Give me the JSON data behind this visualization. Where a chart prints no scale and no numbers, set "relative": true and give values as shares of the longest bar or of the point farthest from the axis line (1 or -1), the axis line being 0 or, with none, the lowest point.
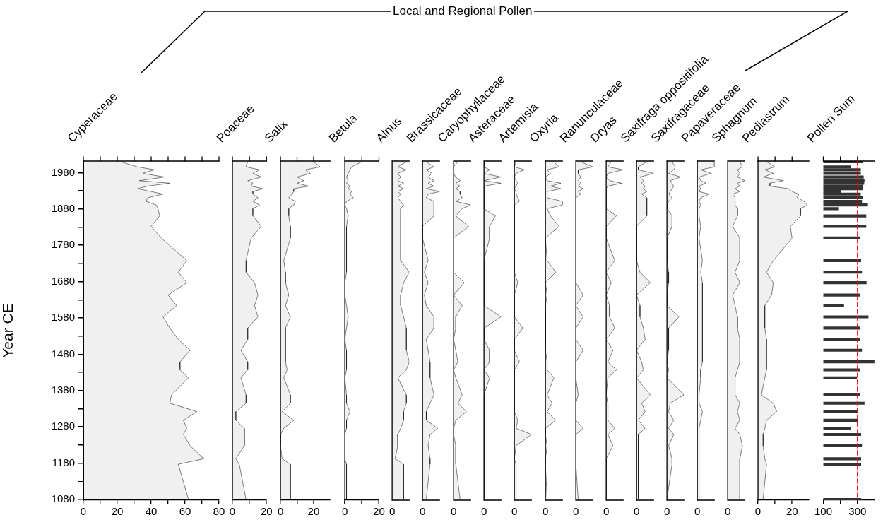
{
  "chart_data": [
    {
      "type": "area",
      "orientation": "horizontal",
      "title": "Cyperaceae",
      "ylabel": "Year CE",
      "annotations": [
        "Local and Regional Pollen"
      ],
      "color": "#000000",
      "xlim": [
        0,
        80
      ],
      "xticks": [
        0,
        {
          "value": 10,
          "label": null
        },
        20,
        {
          "value": 30,
          "label": null
        },
        40,
        {
          "value": 50,
          "label": null
        },
        60,
        {
          "value": 70,
          "label": null
        },
        80
      ],
      "ylim": [
        1078,
        2012
      ],
      "yticks": [
        1080,
        {
          "value": 1130,
          "label": null
        },
        1180,
        {
          "value": 1230,
          "label": null
        },
        1280,
        {
          "value": 1330,
          "label": null
        },
        1380,
        {
          "value": 1430,
          "label": null
        },
        1480,
        {
          "value": 1530,
          "label": null
        },
        1580,
        {
          "value": 1630,
          "label": null
        },
        1680,
        {
          "value": 1730,
          "label": null
        },
        1780,
        {
          "value": 1830,
          "label": null
        },
        1880,
        {
          "value": 1930,
          "label": null
        },
        1980
      ],
      "x": [
        2010,
        1996,
        1988,
        1978,
        1968,
        1958,
        1951,
        1943,
        1936,
        1928,
        1921,
        1911,
        1901,
        1891,
        1881,
        1861,
        1832,
        1800,
        1738,
        1706,
        1677,
        1643,
        1614,
        1583,
        1552,
        1521,
        1491,
        1459,
        1437,
        1415,
        1368,
        1345,
        1322,
        1298,
        1276,
        1259,
        1228,
        1192,
        1177,
        1080
      ],
      "values": [
        22,
        32,
        42,
        35,
        48,
        33,
        51,
        38,
        32,
        40,
        47,
        38,
        37,
        43,
        44,
        45,
        40,
        46,
        61,
        56,
        61,
        50,
        55,
        47,
        51,
        56,
        63,
        57,
        57,
        62,
        52,
        51,
        67,
        59,
        61,
        59,
        63,
        71,
        56,
        62
      ]
    },
    {
      "type": "area",
      "orientation": "horizontal",
      "title": "Poaceae",
      "color": "#000000",
      "xlim": [
        0,
        20
      ],
      "xticks": [
        0,
        {
          "value": 10,
          "label": null
        },
        20
      ],
      "ylim": [
        1078,
        2012
      ],
      "tick_labels": "x",
      "x": [
        2010,
        1996,
        1988,
        1978,
        1968,
        1958,
        1951,
        1943,
        1936,
        1928,
        1921,
        1911,
        1901,
        1891,
        1881,
        1861,
        1832,
        1800,
        1738,
        1706,
        1677,
        1643,
        1614,
        1583,
        1552,
        1521,
        1491,
        1459,
        1437,
        1415,
        1368,
        1345,
        1322,
        1298,
        1276,
        1259,
        1228,
        1192,
        1177,
        1080
      ],
      "values": [
        9,
        8,
        16,
        12,
        17,
        9,
        12,
        11,
        18,
        12,
        12,
        15,
        12,
        16,
        12,
        12,
        17,
        11,
        8,
        8,
        13,
        15,
        13,
        15,
        9,
        9,
        5,
        9,
        9,
        5,
        8,
        8,
        2,
        2,
        7,
        7,
        7,
        2,
        4,
        8
      ]
    },
    {
      "type": "area",
      "orientation": "horizontal",
      "title": "Salix",
      "color": "#000000",
      "xlim": [
        0,
        30
      ],
      "xticks": [
        0,
        {
          "value": 10,
          "label": null
        },
        20
      ],
      "ylim": [
        1078,
        2012
      ],
      "tick_labels": "x",
      "x": [
        2010,
        1996,
        1988,
        1978,
        1968,
        1958,
        1951,
        1943,
        1936,
        1928,
        1921,
        1911,
        1901,
        1891,
        1881,
        1861,
        1832,
        1800,
        1738,
        1706,
        1677,
        1643,
        1614,
        1583,
        1552,
        1521,
        1491,
        1459,
        1437,
        1415,
        1368,
        1345,
        1322,
        1298,
        1276,
        1259,
        1228,
        1192,
        1177,
        1080
      ],
      "values": [
        20,
        24,
        15,
        18,
        10,
        14,
        10,
        17,
        8,
        8,
        7,
        5,
        9,
        8,
        5,
        5,
        6,
        6,
        2,
        3,
        3,
        5,
        3,
        6,
        3,
        3,
        3,
        3,
        4,
        2,
        6,
        6,
        1,
        8,
        2,
        0,
        0,
        1,
        6,
        6
      ]
    },
    {
      "type": "area",
      "orientation": "horizontal",
      "title": "Betula",
      "color": "#000000",
      "xlim": [
        0,
        20
      ],
      "xticks": [
        0,
        {
          "value": 10,
          "label": null
        },
        20
      ],
      "ylim": [
        1078,
        2012
      ],
      "tick_labels": "x",
      "x": [
        2010,
        1996,
        1988,
        1978,
        1968,
        1958,
        1951,
        1943,
        1936,
        1928,
        1921,
        1911,
        1901,
        1891,
        1881,
        1861,
        1832,
        1800,
        1738,
        1706,
        1677,
        1643,
        1614,
        1583,
        1552,
        1521,
        1491,
        1459,
        1437,
        1415,
        1368,
        1345,
        1322,
        1298,
        1276,
        1259,
        1228,
        1192,
        1177,
        1080
      ],
      "values": [
        10,
        4,
        3,
        2,
        1,
        2,
        1,
        3,
        2,
        4,
        3,
        5,
        1,
        0,
        1,
        2,
        1,
        1,
        1,
        1,
        0,
        0,
        1,
        2,
        1,
        0,
        1,
        1,
        1,
        0,
        1,
        1,
        3,
        1,
        1,
        0,
        0,
        0,
        1,
        1
      ]
    },
    {
      "type": "area",
      "orientation": "horizontal",
      "title": "Alnus",
      "color": "#000000",
      "relative": true,
      "annotations": [
        "0"
      ],
      "ylim": [
        1078,
        2012
      ],
      "tick_labels": false,
      "x": [
        2010,
        1996,
        1988,
        1978,
        1968,
        1958,
        1951,
        1943,
        1936,
        1928,
        1921,
        1911,
        1901,
        1891,
        1881,
        1861,
        1832,
        1800,
        1738,
        1706,
        1677,
        1643,
        1614,
        1583,
        1552,
        1521,
        1491,
        1459,
        1437,
        1415,
        1368,
        1345,
        1322,
        1298,
        1276,
        1259,
        1228,
        1192,
        1177,
        1080
      ],
      "values": [
        0.83,
        0.33,
        0.83,
        0.33,
        0.5,
        0.33,
        0.67,
        0.33,
        0.67,
        0.33,
        0.5,
        0.33,
        0.5,
        0.67,
        0.5,
        0.5,
        0.5,
        0.5,
        0.5,
        1,
        0.67,
        0.5,
        0.5,
        0.67,
        0.83,
        0.83,
        0.83,
        1,
        0.83,
        0.33,
        0.83,
        0.83,
        0.67,
        0.67,
        0.5,
        0.33,
        0.33,
        0.17,
        0.67,
        0.67
      ]
    },
    {
      "type": "area",
      "orientation": "horizontal",
      "title": "Brassicaceae",
      "color": "#000000",
      "relative": true,
      "annotations": [
        "0"
      ],
      "ylim": [
        1078,
        2012
      ],
      "tick_labels": false,
      "x": [
        2010,
        1996,
        1988,
        1978,
        1968,
        1958,
        1951,
        1943,
        1936,
        1928,
        1921,
        1911,
        1901,
        1891,
        1881,
        1861,
        1832,
        1800,
        1738,
        1706,
        1677,
        1643,
        1614,
        1583,
        1552,
        1521,
        1491,
        1459,
        1437,
        1415,
        1368,
        1345,
        1322,
        1298,
        1276,
        1259,
        1228,
        1192,
        1177,
        1080
      ],
      "values": [
        0.22,
        0.67,
        0.22,
        0.56,
        0.33,
        0.67,
        0.33,
        0.67,
        0.22,
        1,
        0.33,
        0.22,
        0.67,
        0.67,
        0.67,
        0.67,
        0,
        0,
        0.33,
        0.11,
        0.33,
        0.11,
        0.22,
        0.67,
        0.67,
        0.22,
        0.33,
        0.44,
        0.44,
        0.44,
        0.67,
        0.44,
        0.22,
        0.22,
        0.89,
        0.44,
        0.33,
        0.44,
        0.44,
        0.22
      ]
    },
    {
      "type": "area",
      "orientation": "horizontal",
      "title": "Caryophyllaceae",
      "color": "#000000",
      "relative": true,
      "annotations": [
        "0"
      ],
      "ylim": [
        1078,
        2012
      ],
      "tick_labels": false,
      "x": [
        2010,
        1996,
        1988,
        1978,
        1968,
        1958,
        1951,
        1943,
        1936,
        1928,
        1921,
        1911,
        1901,
        1891,
        1881,
        1861,
        1832,
        1800,
        1738,
        1706,
        1677,
        1643,
        1614,
        1583,
        1552,
        1521,
        1491,
        1459,
        1437,
        1415,
        1368,
        1345,
        1322,
        1298,
        1276,
        1259,
        1228,
        1192,
        1177,
        1080
      ],
      "values": [
        0.25,
        0,
        0,
        0,
        0.13,
        0.38,
        0.13,
        0.38,
        0.13,
        0.38,
        0.38,
        0.5,
        0.13,
        1,
        0.5,
        0.13,
        0.88,
        0,
        0,
        0,
        0.63,
        0,
        0.5,
        0.13,
        0.13,
        0,
        0.13,
        0.25,
        0,
        0.13,
        0.5,
        0.25,
        0.75,
        0.13,
        0,
        0,
        0.13,
        0.13,
        0.13,
        0.38
      ]
    },
    {
      "type": "area",
      "orientation": "horizontal",
      "title": "Asteraceae",
      "color": "#000000",
      "relative": true,
      "annotations": [
        "0"
      ],
      "ylim": [
        1078,
        2012
      ],
      "tick_labels": false,
      "x": [
        2010,
        1996,
        1988,
        1978,
        1968,
        1958,
        1951,
        1943,
        1936,
        1928,
        1921,
        1911,
        1901,
        1891,
        1881,
        1861,
        1832,
        1800,
        1738,
        1706,
        1677,
        1643,
        1614,
        1583,
        1552,
        1521,
        1491,
        1459,
        1437,
        1415,
        1368,
        1345,
        1322,
        1298,
        1276,
        1259,
        1228,
        1192,
        1177,
        1080
      ],
      "values": [
        0,
        0,
        0.33,
        0,
        1,
        0,
        1,
        0,
        0,
        0,
        0,
        0,
        0,
        0,
        0,
        0.67,
        0.33,
        0.33,
        0,
        0,
        0,
        0,
        0,
        1,
        0,
        0,
        0.33,
        0.33,
        0,
        0.33,
        0,
        0,
        0,
        0,
        0,
        0,
        0,
        0,
        0,
        0
      ]
    },
    {
      "type": "area",
      "orientation": "horizontal",
      "title": "Artemisia",
      "color": "#000000",
      "relative": true,
      "annotations": [
        "0"
      ],
      "ylim": [
        1078,
        2012
      ],
      "tick_labels": false,
      "x": [
        2010,
        1996,
        1988,
        1978,
        1968,
        1958,
        1951,
        1943,
        1936,
        1928,
        1921,
        1911,
        1901,
        1891,
        1881,
        1861,
        1832,
        1800,
        1738,
        1706,
        1677,
        1643,
        1614,
        1583,
        1552,
        1521,
        1491,
        1459,
        1437,
        1415,
        1368,
        1345,
        1322,
        1298,
        1276,
        1259,
        1228,
        1192,
        1177,
        1080
      ],
      "values": [
        0.1,
        0,
        0.6,
        0.1,
        0,
        0.1,
        0.2,
        0.1,
        0,
        0.1,
        0.1,
        0.2,
        0.3,
        0,
        0,
        0,
        0,
        0,
        0,
        0,
        0.2,
        0,
        0,
        0,
        0.5,
        0,
        0,
        0.3,
        0,
        0,
        0,
        0,
        0,
        0.2,
        0.1,
        1,
        0.1,
        0,
        0.1,
        0.1
      ]
    },
    {
      "type": "area",
      "orientation": "horizontal",
      "title": "Oxyria",
      "color": "#000000",
      "relative": true,
      "annotations": [
        "0"
      ],
      "ylim": [
        1078,
        2012
      ],
      "tick_labels": false,
      "x": [
        2010,
        1996,
        1988,
        1978,
        1968,
        1958,
        1951,
        1943,
        1936,
        1928,
        1921,
        1911,
        1901,
        1891,
        1881,
        1861,
        1832,
        1800,
        1738,
        1706,
        1677,
        1643,
        1614,
        1583,
        1552,
        1521,
        1491,
        1459,
        1437,
        1415,
        1368,
        1345,
        1322,
        1298,
        1276,
        1259,
        1228,
        1192,
        1177,
        1080
      ],
      "values": [
        0.5,
        0.8,
        0.1,
        0.3,
        0,
        0.1,
        0.9,
        0.3,
        0.9,
        0.1,
        0.1,
        0.1,
        1,
        1,
        0.1,
        0.3,
        0.8,
        0,
        0.1,
        0.6,
        0,
        0.1,
        0,
        0,
        0,
        0,
        0,
        0.1,
        0.1,
        0.5,
        0.1,
        0.4,
        0.1,
        0.6,
        0,
        0,
        0.1,
        0,
        0,
        0.1
      ]
    },
    {
      "type": "area",
      "orientation": "horizontal",
      "title": "Ranunculaceae",
      "color": "#000000",
      "relative": true,
      "annotations": [
        "0"
      ],
      "ylim": [
        1078,
        2012
      ],
      "tick_labels": false,
      "x": [
        2010,
        1996,
        1988,
        1978,
        1968,
        1958,
        1951,
        1943,
        1936,
        1928,
        1921,
        1911,
        1901,
        1891,
        1881,
        1861,
        1832,
        1800,
        1738,
        1706,
        1677,
        1643,
        1614,
        1583,
        1552,
        1521,
        1491,
        1459,
        1437,
        1415,
        1368,
        1345,
        1322,
        1298,
        1276,
        1259,
        1228,
        1192,
        1177,
        1080
      ],
      "values": [
        0.29,
        1,
        0.14,
        0.14,
        0.29,
        0.14,
        0.29,
        0.14,
        0.43,
        0.14,
        0.29,
        0,
        0,
        0,
        0,
        0,
        0,
        0,
        0,
        0,
        0,
        0.43,
        0,
        0.43,
        0,
        0,
        0.43,
        0,
        0,
        0,
        0.14,
        0,
        0,
        0,
        0.43,
        0,
        0,
        0,
        0,
        0.14
      ]
    },
    {
      "type": "area",
      "orientation": "horizontal",
      "title": "Dryas",
      "color": "#000000",
      "relative": true,
      "annotations": [
        "0"
      ],
      "ylim": [
        1078,
        2012
      ],
      "tick_labels": false,
      "x": [
        2010,
        1996,
        1988,
        1978,
        1968,
        1958,
        1951,
        1943,
        1936,
        1928,
        1921,
        1911,
        1901,
        1891,
        1881,
        1861,
        1832,
        1800,
        1738,
        1706,
        1677,
        1643,
        1614,
        1583,
        1552,
        1521,
        1491,
        1459,
        1437,
        1415,
        1368,
        1345,
        1322,
        1298,
        1276,
        1259,
        1228,
        1192,
        1177,
        1080
      ],
      "values": [
        0.3,
        0.1,
        1,
        0.1,
        0,
        0.2,
        0.9,
        0.1,
        0,
        0,
        0,
        0,
        0,
        0,
        0,
        0.6,
        0,
        0,
        0.5,
        0,
        0.3,
        0,
        0.2,
        0.2,
        0.5,
        0,
        0.4,
        0.1,
        0.6,
        0.1,
        0,
        0.1,
        0.1,
        0.1,
        0.5,
        0.1,
        0.4,
        0,
        0,
        0
      ]
    },
    {
      "type": "area",
      "orientation": "horizontal",
      "title": "Saxifraga oppositifolia",
      "color": "#000000",
      "relative": true,
      "annotations": [
        "0"
      ],
      "ylim": [
        1078,
        2012
      ],
      "tick_labels": false,
      "x": [
        2010,
        1996,
        1988,
        1978,
        1968,
        1958,
        1951,
        1943,
        1936,
        1928,
        1921,
        1911,
        1901,
        1891,
        1881,
        1861,
        1832,
        1800,
        1738,
        1706,
        1677,
        1643,
        1614,
        1583,
        1552,
        1521,
        1491,
        1459,
        1437,
        1415,
        1368,
        1345,
        1322,
        1298,
        1276,
        1259,
        1228,
        1192,
        1177,
        1080
      ],
      "values": [
        0.6,
        0.1,
        0.1,
        1,
        0.2,
        0.4,
        0.3,
        0.5,
        0.4,
        0.6,
        0.3,
        0.6,
        0.6,
        0.6,
        0.6,
        0.6,
        0,
        0,
        0,
        0.2,
        0.8,
        0,
        0.2,
        0.2,
        0.4,
        0.5,
        0,
        0.3,
        0.4,
        0,
        0.8,
        0.3,
        0.5,
        0.1,
        0.5,
        0.1,
        0.1,
        0.1,
        0.1,
        0.1
      ]
    },
    {
      "type": "area",
      "orientation": "horizontal",
      "title": "Saxifragaceae",
      "color": "#000000",
      "relative": true,
      "annotations": [
        "0"
      ],
      "ylim": [
        1078,
        2012
      ],
      "tick_labels": false,
      "x": [
        2010,
        1996,
        1988,
        1978,
        1968,
        1958,
        1951,
        1943,
        1936,
        1928,
        1921,
        1911,
        1901,
        1891,
        1881,
        1861,
        1832,
        1800,
        1738,
        1706,
        1677,
        1643,
        1614,
        1583,
        1552,
        1521,
        1491,
        1459,
        1437,
        1415,
        1368,
        1345,
        1322,
        1298,
        1276,
        1259,
        1228,
        1192,
        1177,
        1080
      ],
      "values": [
        0.3,
        0.5,
        0.4,
        0.1,
        0.8,
        0.2,
        0.3,
        0.4,
        0.3,
        0.2,
        0.1,
        0.3,
        0.1,
        0,
        0,
        0.3,
        0.3,
        0,
        0,
        0.1,
        0.1,
        0,
        0,
        0.7,
        0.1,
        0.1,
        0.1,
        0,
        0.1,
        0,
        1,
        0.2,
        0.1,
        0.4,
        0.1,
        0.4,
        0.1,
        0.3,
        0.3,
        0
      ]
    },
    {
      "type": "area",
      "orientation": "horizontal",
      "title": "Papaveraceae",
      "color": "#000000",
      "relative": true,
      "annotations": [
        "0"
      ],
      "ylim": [
        1078,
        2012
      ],
      "tick_labels": false,
      "x": [
        2010,
        1996,
        1988,
        1978,
        1968,
        1958,
        1951,
        1943,
        1936,
        1928,
        1921,
        1911,
        1901,
        1891,
        1881,
        1861,
        1832,
        1800,
        1738,
        1706,
        1677,
        1643,
        1614,
        1583,
        1552,
        1521,
        1491,
        1459,
        1437,
        1415,
        1368,
        1345,
        1322,
        1298,
        1276,
        1259,
        1228,
        1192,
        1177,
        1080
      ],
      "values": [
        1,
        1,
        0.2,
        0.8,
        0.1,
        0.2,
        0.5,
        0.1,
        0.2,
        0.1,
        0.7,
        0.2,
        0.1,
        0.2,
        0.1,
        0.1,
        0.2,
        0.1,
        0.3,
        0.2,
        0.3,
        0.3,
        0.3,
        0.3,
        0.3,
        0.3,
        0.3,
        0.3,
        0.2,
        0.2,
        0.1,
        0.1,
        0.3,
        0.2,
        0.1,
        0.1,
        0.1,
        0.1,
        0.1,
        0.1
      ]
    },
    {
      "type": "area",
      "orientation": "horizontal",
      "title": "Sphagnum",
      "color": "#000000",
      "relative": true,
      "annotations": [
        "0"
      ],
      "ylim": [
        1078,
        2012
      ],
      "tick_labels": false,
      "x": [
        2010,
        1996,
        1988,
        1978,
        1968,
        1958,
        1951,
        1943,
        1936,
        1928,
        1921,
        1911,
        1901,
        1891,
        1881,
        1861,
        1832,
        1800,
        1738,
        1706,
        1677,
        1643,
        1614,
        1583,
        1552,
        1521,
        1491,
        1459,
        1437,
        1415,
        1368,
        1345,
        1322,
        1298,
        1276,
        1259,
        1228,
        1192,
        1177,
        1080
      ],
      "values": [
        0.71,
        0.86,
        0.57,
        0.71,
        0.57,
        1,
        0.57,
        0.71,
        0.43,
        0.71,
        0.29,
        0.43,
        0.43,
        0.43,
        0.57,
        0.57,
        0.29,
        0.71,
        0.71,
        0.43,
        0.71,
        0.29,
        0.43,
        0.57,
        0.57,
        0.71,
        0.71,
        0.71,
        0.57,
        0.43,
        0.43,
        0.71,
        0.57,
        0.71,
        0.43,
        0.71,
        0.86,
        0.71,
        0.71,
        0.71
      ]
    },
    {
      "type": "area",
      "orientation": "horizontal",
      "title": "Pediastrum",
      "color": "#000000",
      "xlim": [
        0,
        30
      ],
      "xticks": [
        0,
        {
          "value": 10,
          "label": null
        },
        20
      ],
      "ylim": [
        1078,
        2012
      ],
      "tick_labels": "x",
      "x": [
        2010,
        1996,
        1988,
        1978,
        1968,
        1958,
        1951,
        1943,
        1936,
        1928,
        1921,
        1911,
        1901,
        1891,
        1881,
        1861,
        1832,
        1800,
        1738,
        1706,
        1677,
        1643,
        1614,
        1583,
        1552,
        1521,
        1491,
        1459,
        1437,
        1415,
        1368,
        1345,
        1322,
        1298,
        1276,
        1259,
        1228,
        1192,
        1177,
        1080
      ],
      "values": [
        5,
        10,
        4,
        9,
        3,
        15,
        7,
        7,
        18,
        20,
        24,
        23,
        27,
        29,
        25,
        25,
        19,
        20,
        9,
        5,
        9,
        8,
        4,
        4,
        4,
        5,
        5,
        5,
        5,
        4,
        2,
        9,
        11,
        5,
        4,
        3,
        3,
        4,
        5,
        3
      ]
    },
    {
      "type": "bar",
      "orientation": "horizontal",
      "title": "Pollen Sum",
      "color": "#333333",
      "xlim": [
        100,
        400
      ],
      "xticks": [
        100,
        {
          "value": 200,
          "label": null
        },
        300
      ],
      "ylim": [
        1078,
        2012
      ],
      "tick_labels": "x",
      "ref_lines": [
        {
          "axis": "x",
          "value": 300,
          "color": "#ff0000",
          "line_style": "dashed"
        }
      ],
      "x": [
        2010,
        1996,
        1988,
        1978,
        1968,
        1958,
        1951,
        1943,
        1936,
        1928,
        1921,
        1911,
        1901,
        1891,
        1881,
        1861,
        1832,
        1800,
        1738,
        1706,
        1677,
        1643,
        1614,
        1583,
        1552,
        1521,
        1491,
        1459,
        1437,
        1415,
        1368,
        1345,
        1322,
        1298,
        1276,
        1259,
        1228,
        1192,
        1177,
        1080
      ],
      "values": [
        330,
        262,
        318,
        318,
        335,
        340,
        338,
        330,
        328,
        200,
        318,
        330,
        325,
        360,
        190,
        350,
        350,
        315,
        320,
        325,
        352,
        315,
        220,
        363,
        315,
        315,
        325,
        398,
        315,
        295,
        315,
        340,
        300,
        300,
        260,
        320,
        325,
        320,
        320,
        320
      ]
    }
  ]
}
